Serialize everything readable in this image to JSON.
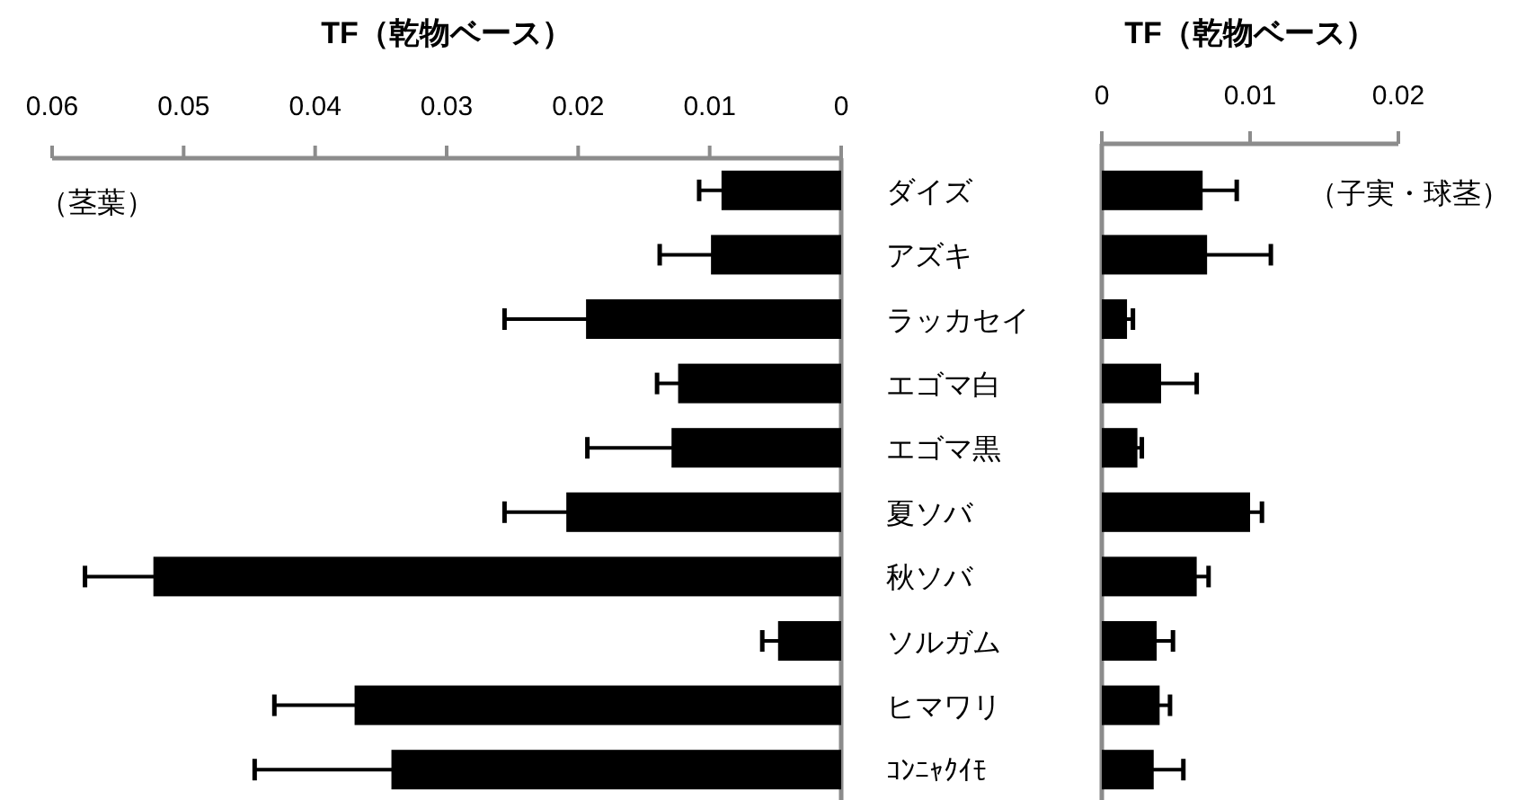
{
  "chart_data": [
    {
      "type": "bar",
      "orientation": "horizontal",
      "title": "TF（乾物ベース）",
      "annotations": [
        "（茎葉）"
      ],
      "categories": [
        null,
        null,
        null,
        null,
        null,
        null,
        null,
        null,
        null,
        null
      ],
      "values": [
        0.0091,
        0.0099,
        0.0194,
        0.0124,
        0.0129,
        0.0209,
        0.0523,
        0.0048,
        0.037,
        0.0342
      ],
      "errors": [
        0.0017,
        0.0039,
        0.0062,
        0.0016,
        0.0064,
        0.0047,
        0.0052,
        0.0012,
        0.0061,
        0.0104
      ],
      "color": "#000000",
      "xlim": [
        0.06,
        0
      ],
      "xticks": [
        0.06,
        0.05,
        0.04,
        0.03,
        0.02,
        0.01,
        0
      ]
    },
    {
      "type": "bar",
      "orientation": "horizontal",
      "title": "TF（乾物ベース）",
      "annotations": [
        "（子実・球茎）"
      ],
      "categories": [
        "ダイズ",
        "アズキ",
        "ラッカセイ",
        "エゴマ白",
        "エゴマ黒",
        "夏ソバ",
        "秋ソバ",
        "ソルガム",
        "ヒマワリ",
        "ｺﾝﾆｬｸｲﾓ"
      ],
      "values": [
        0.0068,
        0.0071,
        0.0017,
        0.004,
        0.0024,
        0.01,
        0.0064,
        0.0037,
        0.0039,
        0.0035
      ],
      "errors": [
        0.0023,
        0.0043,
        0.0004,
        0.0024,
        0.0003,
        0.0008,
        0.0008,
        0.0011,
        0.0007,
        0.002
      ],
      "color": "#000000",
      "xlim": [
        0,
        0.02
      ],
      "xticks": [
        0,
        0.01,
        0.02
      ]
    }
  ]
}
